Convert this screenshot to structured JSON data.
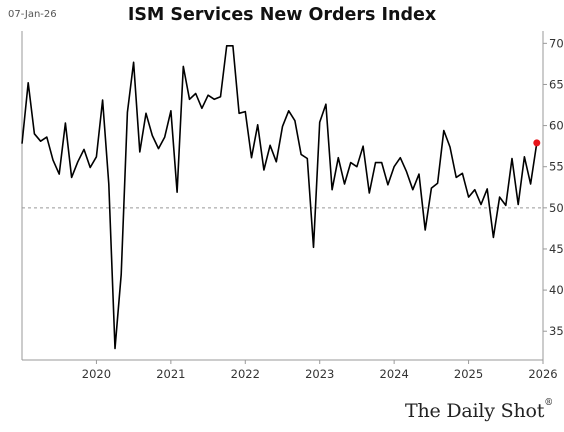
{
  "header": {
    "date": "07-Jan-26",
    "title": "ISM Services New Orders Index"
  },
  "brand": {
    "name": "The Daily Shot",
    "mark": "®"
  },
  "colors": {
    "line": "#000000",
    "reference_line": "#999999",
    "last_point": "#e8151b",
    "frame": "#999999"
  },
  "chart_data": {
    "type": "line",
    "title": "ISM Services New Orders Index",
    "xlabel": "",
    "ylabel": "",
    "x_ticks": [
      "2020",
      "2021",
      "2022",
      "2023",
      "2024",
      "2025",
      "2026"
    ],
    "y_ticks": [
      35,
      40,
      45,
      50,
      55,
      60,
      65,
      70
    ],
    "ylim": [
      31.5,
      71.5
    ],
    "xlim": [
      "2019-01",
      "2026-01"
    ],
    "y_axis_side": "right",
    "grid": false,
    "reference_line": {
      "y": 50,
      "style": "dashed"
    },
    "highlight_last_point": true,
    "series": [
      {
        "x": [
          "2019-01",
          "2019-02",
          "2019-03",
          "2019-04",
          "2019-05",
          "2019-06",
          "2019-07",
          "2019-08",
          "2019-09",
          "2019-10",
          "2019-11",
          "2019-12",
          "2020-01",
          "2020-02",
          "2020-03",
          "2020-04",
          "2020-05",
          "2020-06",
          "2020-07",
          "2020-08",
          "2020-09",
          "2020-10",
          "2020-11",
          "2020-12",
          "2021-01",
          "2021-02",
          "2021-03",
          "2021-04",
          "2021-05",
          "2021-06",
          "2021-07",
          "2021-08",
          "2021-09",
          "2021-10",
          "2021-11",
          "2021-12",
          "2022-01",
          "2022-02",
          "2022-03",
          "2022-04",
          "2022-05",
          "2022-06",
          "2022-07",
          "2022-08",
          "2022-09",
          "2022-10",
          "2022-11",
          "2022-12",
          "2023-01",
          "2023-02",
          "2023-03",
          "2023-04",
          "2023-05",
          "2023-06",
          "2023-07",
          "2023-08",
          "2023-09",
          "2023-10",
          "2023-11",
          "2023-12",
          "2024-01",
          "2024-02",
          "2024-03",
          "2024-04",
          "2024-05",
          "2024-06",
          "2024-07",
          "2024-08",
          "2024-09",
          "2024-10",
          "2024-11",
          "2024-12",
          "2025-01",
          "2025-02",
          "2025-03",
          "2025-04",
          "2025-05",
          "2025-06",
          "2025-07",
          "2025-08",
          "2025-09",
          "2025-10",
          "2025-11",
          "2025-12"
        ],
        "y": [
          57.8,
          65.2,
          59.0,
          58.1,
          58.6,
          55.8,
          54.1,
          60.3,
          53.7,
          55.6,
          57.1,
          54.9,
          56.2,
          63.1,
          52.9,
          32.9,
          41.9,
          61.6,
          67.7,
          56.8,
          61.5,
          58.8,
          57.2,
          58.6,
          61.8,
          51.9,
          67.2,
          63.2,
          63.9,
          62.1,
          63.7,
          63.2,
          63.5,
          69.7,
          69.7,
          61.5,
          61.7,
          56.1,
          60.1,
          54.6,
          57.6,
          55.6,
          59.9,
          61.8,
          60.6,
          56.5,
          56.0,
          45.2,
          60.4,
          62.6,
          52.2,
          56.1,
          52.9,
          55.5,
          55.0,
          57.5,
          51.8,
          55.5,
          55.5,
          52.8,
          55.0,
          56.1,
          54.4,
          52.2,
          54.1,
          47.3,
          52.4,
          53.0,
          59.4,
          57.4,
          53.7,
          54.2,
          51.3,
          52.2,
          50.4,
          52.3,
          46.4,
          51.3,
          50.3,
          56.0,
          50.4,
          56.2,
          52.9,
          57.9
        ]
      }
    ]
  }
}
